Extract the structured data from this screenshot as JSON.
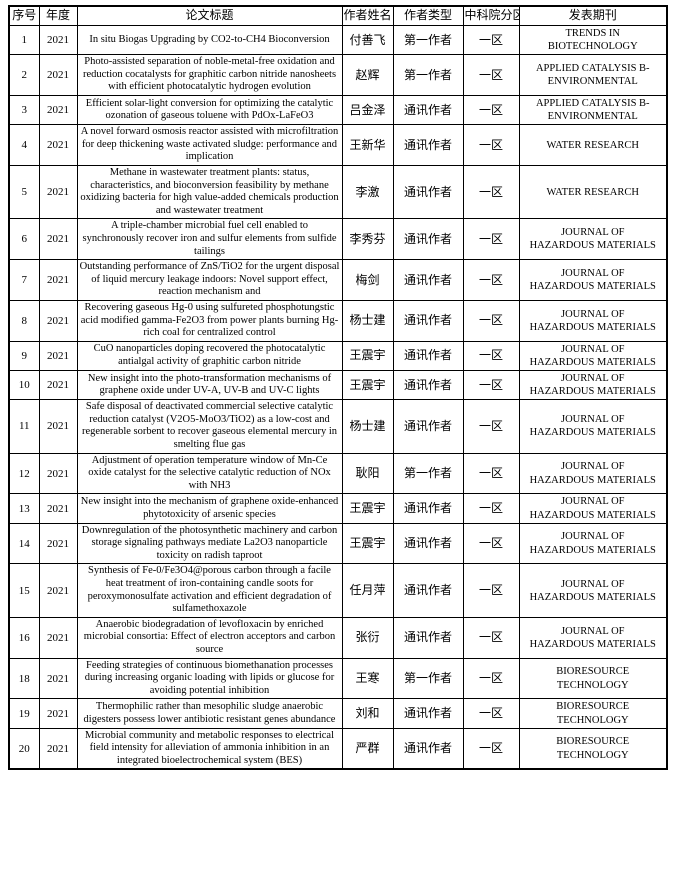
{
  "page": {
    "background_color": "#ffffff",
    "border_color": "#000000",
    "text_color": "#000000"
  },
  "table": {
    "headers": [
      "序号",
      "年度",
      "论文标题",
      "作者姓名",
      "作者类型",
      "中科院分区",
      "发表期刊"
    ],
    "rows": [
      {
        "no": "1",
        "year": "2021",
        "title": "In situ Biogas Upgrading by CO2-to-CH4 Bioconversion",
        "author": "付善飞",
        "author_type": "第一作者",
        "cas_division": "一区",
        "journal": "TRENDS IN BIOTECHNOLOGY"
      },
      {
        "no": "2",
        "year": "2021",
        "title": "Photo-assisted separation of noble-metal-free oxidation and reduction cocatalysts for graphitic carbon nitride nanosheets with efficient photocatalytic hydrogen evolution",
        "author": "赵辉",
        "author_type": "第一作者",
        "cas_division": "一区",
        "journal": "APPLIED CATALYSIS B-ENVIRONMENTAL"
      },
      {
        "no": "3",
        "year": "2021",
        "title": "Efficient solar-light conversion for optimizing the catalytic ozonation of gaseous toluene with PdOx-LaFeO3",
        "author": "吕金泽",
        "author_type": "通讯作者",
        "cas_division": "一区",
        "journal": "APPLIED CATALYSIS B-ENVIRONMENTAL"
      },
      {
        "no": "4",
        "year": "2021",
        "title": "A novel forward osmosis reactor assisted with microfiltration for deep thickening waste activated sludge: performance and implication",
        "author": "王新华",
        "author_type": "通讯作者",
        "cas_division": "一区",
        "journal": "WATER RESEARCH"
      },
      {
        "no": "5",
        "year": "2021",
        "title": "Methane in wastewater treatment plants: status, characteristics, and bioconversion feasibility by methane oxidizing bacteria for high value-added chemicals production and wastewater treatment",
        "author": "李激",
        "author_type": "通讯作者",
        "cas_division": "一区",
        "journal": "WATER RESEARCH"
      },
      {
        "no": "6",
        "year": "2021",
        "title": "A triple-chamber microbial fuel cell enabled to synchronously recover iron and sulfur elements from sulfide tailings",
        "author": "李秀芬",
        "author_type": "通讯作者",
        "cas_division": "一区",
        "journal": "JOURNAL OF HAZARDOUS MATERIALS"
      },
      {
        "no": "7",
        "year": "2021",
        "title": "Outstanding performance of ZnS/TiO2 for the urgent disposal of liquid mercury leakage indoors: Novel support effect, reaction mechanism and",
        "author": "梅剑",
        "author_type": "通讯作者",
        "cas_division": "一区",
        "journal": "JOURNAL OF HAZARDOUS MATERIALS"
      },
      {
        "no": "8",
        "year": "2021",
        "title": "Recovering gaseous Hg-0 using sulfureted phosphotungstic acid modified gamma-Fe2O3 from power plants burning Hg-rich coal for centralized control",
        "author": "杨士建",
        "author_type": "通讯作者",
        "cas_division": "一区",
        "journal": "JOURNAL OF HAZARDOUS MATERIALS"
      },
      {
        "no": "9",
        "year": "2021",
        "title": "CuO nanoparticles doping recovered the photocatalytic antialgal activity of graphitic carbon nitride",
        "author": "王震宇",
        "author_type": "通讯作者",
        "cas_division": "一区",
        "journal": "JOURNAL OF HAZARDOUS MATERIALS"
      },
      {
        "no": "10",
        "year": "2021",
        "title": "New insight into the photo-transformation mechanisms of graphene oxide under UV-A, UV-B and UV-C lights",
        "author": "王震宇",
        "author_type": "通讯作者",
        "cas_division": "一区",
        "journal": "JOURNAL OF HAZARDOUS MATERIALS"
      },
      {
        "no": "11",
        "year": "2021",
        "title": "Safe disposal of deactivated commercial selective catalytic reduction catalyst (V2O5-MoO3/TiO2) as a low-cost and regenerable sorbent to recover gaseous elemental mercury in smelting flue gas",
        "author": "杨士建",
        "author_type": "通讯作者",
        "cas_division": "一区",
        "journal": "JOURNAL OF HAZARDOUS MATERIALS"
      },
      {
        "no": "12",
        "year": "2021",
        "title": "Adjustment of operation temperature window of Mn-Ce oxide catalyst for the selective catalytic reduction of NOx with NH3",
        "author": "耿阳",
        "author_type": "第一作者",
        "cas_division": "一区",
        "journal": "JOURNAL OF HAZARDOUS MATERIALS"
      },
      {
        "no": "13",
        "year": "2021",
        "title": "New insight into the mechanism of graphene oxide-enhanced phytotoxicity of arsenic species",
        "author": "王震宇",
        "author_type": "通讯作者",
        "cas_division": "一区",
        "journal": "JOURNAL OF HAZARDOUS MATERIALS"
      },
      {
        "no": "14",
        "year": "2021",
        "title": "Downregulation of the photosynthetic machinery and carbon storage signaling pathways mediate La2O3 nanoparticle toxicity on radish taproot",
        "author": "王震宇",
        "author_type": "通讯作者",
        "cas_division": "一区",
        "journal": "JOURNAL OF HAZARDOUS MATERIALS"
      },
      {
        "no": "15",
        "year": "2021",
        "title": "Synthesis of Fe-0/Fe3O4@porous carbon through a facile heat treatment of iron-containing candle soots for peroxymonosulfate activation and efficient degradation of sulfamethoxazole",
        "author": "任月萍",
        "author_type": "通讯作者",
        "cas_division": "一区",
        "journal": "JOURNAL OF HAZARDOUS MATERIALS"
      },
      {
        "no": "16",
        "year": "2021",
        "title": "Anaerobic biodegradation of levofloxacin by enriched microbial consortia: Effect of electron acceptors and carbon source",
        "author": "张衍",
        "author_type": "通讯作者",
        "cas_division": "一区",
        "journal": "JOURNAL OF HAZARDOUS MATERIALS"
      },
      {
        "no": "18",
        "year": "2021",
        "title": "Feeding strategies of continuous biomethanation processes during increasing organic loading with lipids or glucose for avoiding potential inhibition",
        "author": "王寒",
        "author_type": "第一作者",
        "cas_division": "一区",
        "journal": "BIORESOURCE TECHNOLOGY"
      },
      {
        "no": "19",
        "year": "2021",
        "title": "Thermophilic rather than mesophilic sludge anaerobic digesters possess lower antibiotic resistant genes abundance",
        "author": "刘和",
        "author_type": "通讯作者",
        "cas_division": "一区",
        "journal": "BIORESOURCE TECHNOLOGY"
      },
      {
        "no": "20",
        "year": "2021",
        "title": "Microbial community and metabolic responses to electrical field intensity for alleviation of ammonia inhibition in an integrated bioelectrochemical system (BES)",
        "author": "严群",
        "author_type": "通讯作者",
        "cas_division": "一区",
        "journal": "BIORESOURCE TECHNOLOGY"
      }
    ]
  }
}
